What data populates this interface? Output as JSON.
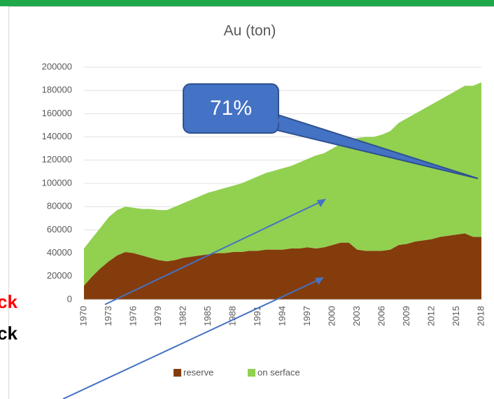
{
  "chart_data": {
    "type": "stacked_area",
    "title": "Au (ton)",
    "categories": [
      "1970",
      null,
      null,
      "1973",
      null,
      null,
      "1976",
      null,
      null,
      "1979",
      null,
      null,
      "1982",
      null,
      null,
      "1985",
      null,
      null,
      "1988",
      null,
      null,
      "1991",
      null,
      null,
      "1994",
      null,
      null,
      "1997",
      null,
      null,
      "2000",
      null,
      null,
      "2003",
      null,
      null,
      "2006",
      null,
      null,
      "2009",
      null,
      null,
      "2012",
      null,
      null,
      "2015",
      null,
      null,
      "2018"
    ],
    "series": [
      {
        "name": "reserve",
        "color": "#843c0c",
        "values": [
          12000,
          20000,
          27000,
          33000,
          38000,
          41000,
          40000,
          38000,
          36000,
          34000,
          33000,
          34000,
          36000,
          37000,
          38000,
          39000,
          40000,
          40000,
          41000,
          41000,
          42000,
          42000,
          43000,
          43000,
          43000,
          44000,
          44000,
          45000,
          44000,
          45000,
          47000,
          49000,
          49000,
          43000,
          42000,
          42000,
          42000,
          43000,
          47000,
          48000,
          50000,
          51000,
          52000,
          54000,
          55000,
          56000,
          57000,
          54000,
          54000
        ]
      },
      {
        "name": "on serface",
        "color": "#92d050",
        "values": [
          32000,
          33000,
          35000,
          38000,
          39000,
          39000,
          39000,
          40000,
          42000,
          43000,
          44000,
          46000,
          47000,
          49000,
          51000,
          53000,
          54000,
          56000,
          57000,
          59000,
          61000,
          64000,
          66000,
          68000,
          70000,
          71000,
          74000,
          76000,
          80000,
          81000,
          83000,
          85000,
          89000,
          96000,
          98000,
          98000,
          100000,
          102000,
          105000,
          108000,
          110000,
          113000,
          116000,
          118000,
          121000,
          124000,
          127000,
          130000,
          133000
        ]
      }
    ],
    "ylim": [
      0,
      200000
    ],
    "yticks": [
      0,
      20000,
      40000,
      60000,
      80000,
      100000,
      120000,
      140000,
      160000,
      180000,
      200000
    ],
    "grid": true,
    "legend": "bottom",
    "annotations": [
      "71%",
      "ck",
      "ck"
    ]
  }
}
